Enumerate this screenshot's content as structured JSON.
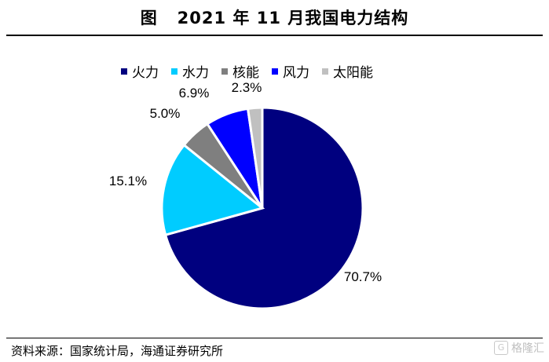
{
  "title": "图   2021 年 11 月我国电力结构",
  "source": "资料来源：国家统计局，海通证券研究所",
  "watermark": "格隆汇",
  "chart_data": {
    "type": "pie",
    "categories": [
      "火力",
      "水力",
      "核能",
      "风力",
      "太阳能"
    ],
    "values": [
      70.7,
      15.1,
      5.0,
      6.9,
      2.3
    ],
    "labels": [
      "70.7%",
      "15.1%",
      "5.0%",
      "6.9%",
      "2.3%"
    ],
    "colors": [
      "#00007f",
      "#00ccff",
      "#7f7f7f",
      "#0000ff",
      "#c0c0c0"
    ],
    "legend_position": "top",
    "start": "12 o'clock, clockwise"
  }
}
